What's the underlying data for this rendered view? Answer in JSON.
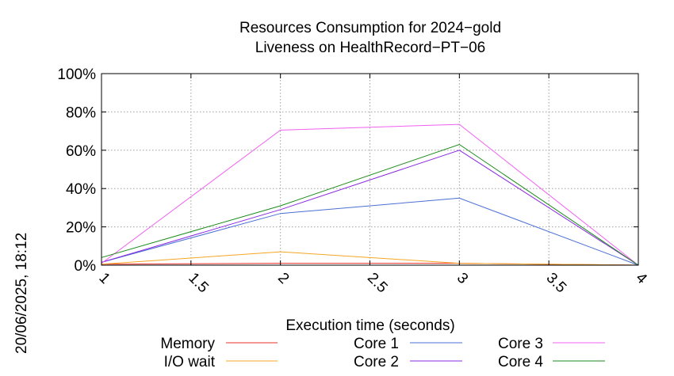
{
  "chart_data": {
    "type": "line",
    "title": [
      "Resources Consumption for 2024−gold",
      "Liveness on HealthRecord−PT−06"
    ],
    "xlabel": "Execution time (seconds)",
    "ylabel": "",
    "side_label": "20/06/2025, 18:12",
    "xlim": [
      1,
      4
    ],
    "ylim": [
      0,
      100
    ],
    "x_ticks": [
      {
        "value": 1,
        "label": "1"
      },
      {
        "value": 1.5,
        "label": "1.5"
      },
      {
        "value": 2,
        "label": "2"
      },
      {
        "value": 2.5,
        "label": "2.5"
      },
      {
        "value": 3,
        "label": "3"
      },
      {
        "value": 3.5,
        "label": "3.5"
      },
      {
        "value": 4,
        "label": "4"
      }
    ],
    "y_ticks": [
      {
        "value": 0,
        "label": "0%"
      },
      {
        "value": 20,
        "label": "20%"
      },
      {
        "value": 40,
        "label": "40%"
      },
      {
        "value": 60,
        "label": "60%"
      },
      {
        "value": 80,
        "label": "80%"
      },
      {
        "value": 100,
        "label": "100%"
      }
    ],
    "grid": true,
    "legend_position": "bottom",
    "x": [
      1,
      2,
      3,
      4
    ],
    "series": [
      {
        "name": "Memory",
        "color": "#e8302a",
        "values": [
          0.5,
          1,
          1,
          0
        ]
      },
      {
        "name": "I/O wait",
        "color": "#f5a623",
        "values": [
          0.5,
          7,
          1,
          0
        ]
      },
      {
        "name": "Core 1",
        "color": "#4a6fd4",
        "values": [
          1.5,
          27,
          35,
          0
        ]
      },
      {
        "name": "Core 2",
        "color": "#8a2be2",
        "values": [
          1.5,
          29,
          60,
          0
        ]
      },
      {
        "name": "Core 3",
        "color": "#f060f0",
        "values": [
          1,
          70.5,
          73.5,
          0
        ]
      },
      {
        "name": "Core 4",
        "color": "#1a8a1a",
        "values": [
          4,
          31,
          63,
          0
        ]
      }
    ]
  }
}
